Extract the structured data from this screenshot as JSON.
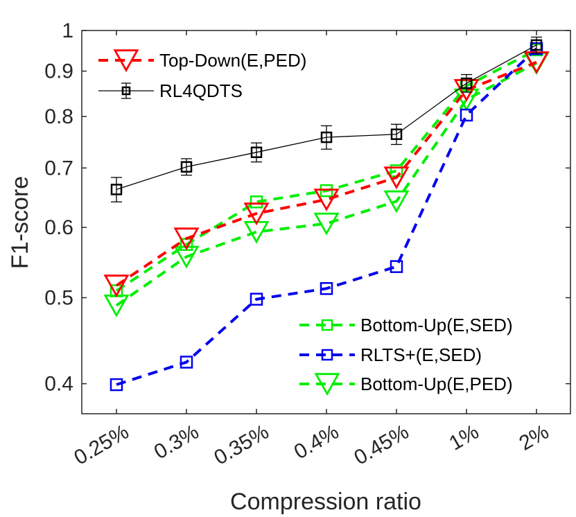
{
  "chart_data": {
    "type": "line",
    "yscale": "log",
    "xlabel": "Compression ratio",
    "ylabel": "F1-score",
    "ylim": [
      0.37,
      1.0
    ],
    "yticks": [
      {
        "value": 0.4,
        "label": "0.4"
      },
      {
        "value": 0.5,
        "label": "0.5"
      },
      {
        "value": 0.6,
        "label": "0.6"
      },
      {
        "value": 0.7,
        "label": "0.7"
      },
      {
        "value": 0.8,
        "label": "0.8"
      },
      {
        "value": 0.9,
        "label": "0.9"
      },
      {
        "value": 1.0,
        "label": "1"
      }
    ],
    "categories": [
      "0.25%",
      "0.3%",
      "0.35%",
      "0.4%",
      "0.45%",
      "1%",
      "2%"
    ],
    "series": [
      {
        "name": "Top-Down(E,PED)",
        "color": "#ff0000",
        "marker": "triangle-down",
        "line": "dashed",
        "values": [
          0.516,
          0.583,
          0.622,
          0.645,
          0.683,
          0.857,
          0.921
        ]
      },
      {
        "name": "RL4QDTS",
        "color": "#000000",
        "marker": "square",
        "line": "solid",
        "values": [
          0.662,
          0.702,
          0.729,
          0.758,
          0.764,
          0.872,
          0.963
        ],
        "errors": [
          0.021,
          0.015,
          0.018,
          0.023,
          0.02,
          0.02,
          0.02
        ]
      },
      {
        "name": "Bottom-Up(E,SED)",
        "color": "#00ee00",
        "marker": "square",
        "line": "dashed",
        "values": [
          0.509,
          0.574,
          0.641,
          0.66,
          0.695,
          0.866,
          0.951
        ]
      },
      {
        "name": "RLTS+(E,SED)",
        "color": "#0000ee",
        "marker": "square",
        "line": "dashed",
        "values": [
          0.399,
          0.423,
          0.498,
          0.512,
          0.542,
          0.803,
          0.954
        ]
      },
      {
        "name": "Bottom-Up(E,PED)",
        "color": "#00ee00",
        "marker": "triangle-down",
        "line": "dashed",
        "values": [
          0.49,
          0.556,
          0.593,
          0.606,
          0.642,
          0.836,
          0.919
        ]
      }
    ],
    "legend": {
      "top_left": [
        "Top-Down(E,PED)",
        "RL4QDTS"
      ],
      "bottom_right": [
        "Bottom-Up(E,SED)",
        "RLTS+(E,SED)",
        "Bottom-Up(E,PED)"
      ]
    }
  }
}
